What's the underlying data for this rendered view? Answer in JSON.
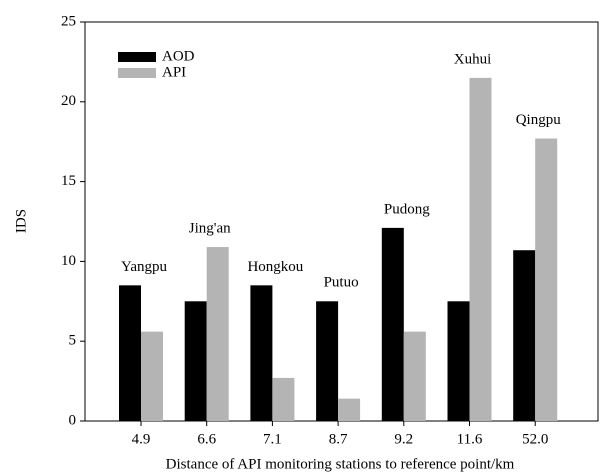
{
  "chart_data": {
    "type": "bar",
    "x_label": "Distance of API monitoring stations to reference point/km",
    "y_label": "IDS",
    "categories": [
      "4.9",
      "6.6",
      "7.1",
      "8.7",
      "9.2",
      "11.6",
      "52.0"
    ],
    "annotations": [
      "Yangpu",
      "Jing'an",
      "Hongkou",
      "Putuo",
      "Pudong",
      "Xuhui",
      "Qingpu"
    ],
    "series": [
      {
        "name": "AOD",
        "color": "#000000",
        "values": [
          8.5,
          7.5,
          8.5,
          7.5,
          12.1,
          7.5,
          10.7
        ]
      },
      {
        "name": "API",
        "color": "#b4b4b4",
        "values": [
          5.6,
          10.9,
          2.7,
          1.4,
          5.6,
          21.5,
          17.7
        ]
      }
    ],
    "ylim": [
      0,
      25
    ],
    "yticks": [
      0,
      5,
      10,
      15,
      20,
      25
    ],
    "legend": "upper-left"
  }
}
